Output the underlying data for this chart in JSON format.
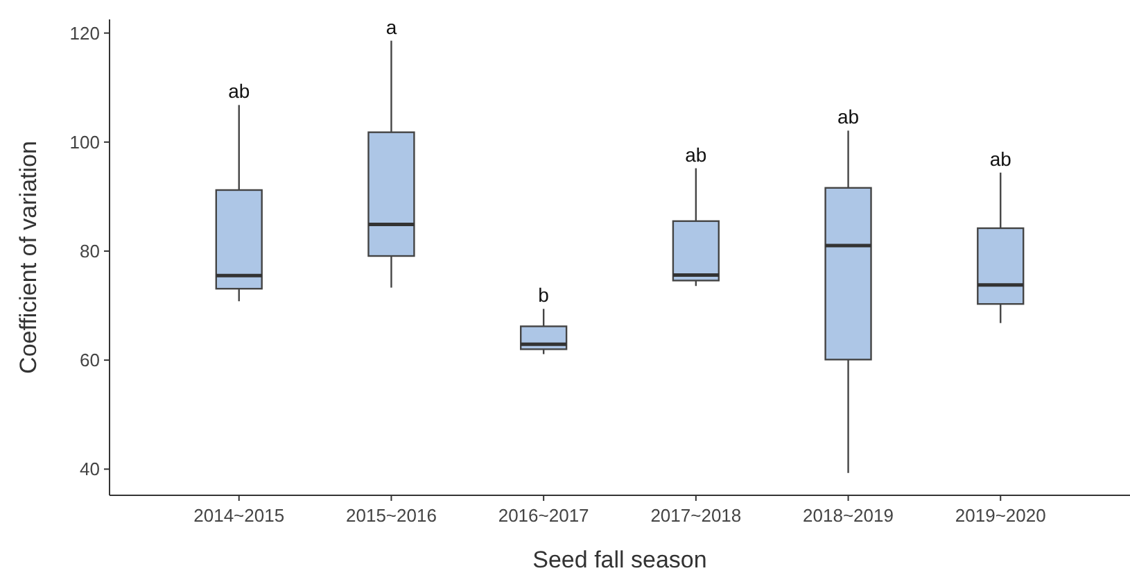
{
  "chart_data": {
    "type": "box",
    "xlabel": "Seed fall season",
    "ylabel": "Coefficient of variation",
    "categories": [
      "2014~2015",
      "2015~2016",
      "2016~2017",
      "2017~2018",
      "2018~2019",
      "2019~2020"
    ],
    "color": "#adc6e6",
    "boxes": [
      {
        "low": 70.8,
        "q1": 73.1,
        "median": 75.5,
        "q3": 91.2,
        "high": 106.8
      },
      {
        "low": 73.3,
        "q1": 79.1,
        "median": 84.9,
        "q3": 101.8,
        "high": 118.6
      },
      {
        "low": 61.1,
        "q1": 62.0,
        "median": 62.9,
        "q3": 66.2,
        "high": 69.4
      },
      {
        "low": 73.6,
        "q1": 74.6,
        "median": 75.6,
        "q3": 85.5,
        "high": 95.2
      },
      {
        "low": 39.3,
        "q1": 60.1,
        "median": 81.0,
        "q3": 91.6,
        "high": 102.1
      },
      {
        "low": 66.8,
        "q1": 70.3,
        "median": 73.8,
        "q3": 84.2,
        "high": 94.4
      }
    ],
    "ylim": [
      35.2,
      122.5
    ],
    "yticks": [
      40,
      60,
      80,
      100,
      120
    ],
    "annotations": [
      {
        "text": "ab",
        "x": "2014~2015",
        "y": 106.8
      },
      {
        "text": "a",
        "x": "2015~2016",
        "y": 118.6
      },
      {
        "text": "b",
        "x": "2016~2017",
        "y": 69.4
      },
      {
        "text": "ab",
        "x": "2017~2018",
        "y": 95.2
      },
      {
        "text": "ab",
        "x": "2018~2019",
        "y": 102.1
      },
      {
        "text": "ab",
        "x": "2019~2020",
        "y": 94.4
      }
    ]
  }
}
